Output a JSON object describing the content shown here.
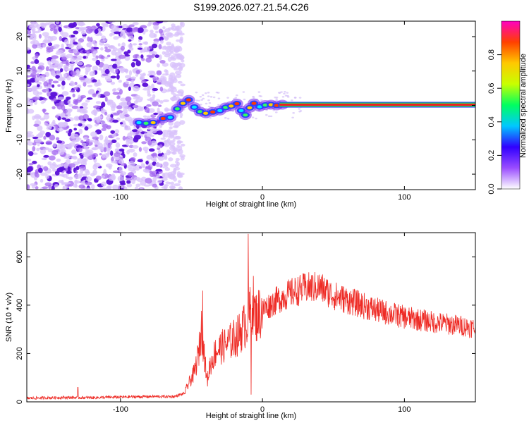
{
  "figure_title": "S199.2026.027.21.54.C26",
  "chart_data": [
    {
      "type": "heatmap",
      "title": "S199.2026.027.21.54.C26",
      "xlabel": "Height of straight line (km)",
      "ylabel": "Frequency (Hz)",
      "xlim": [
        -166,
        150
      ],
      "ylim": [
        -24.5,
        24.5
      ],
      "x_ticks": [
        -100,
        0,
        100
      ],
      "y_ticks": [
        -20,
        -10,
        0,
        10,
        20
      ],
      "x_tick_labels": [
        "-100",
        "0",
        "100"
      ],
      "y_tick_labels": [
        "-20",
        "-10",
        "0",
        "10",
        "20"
      ],
      "noise_region_x": [
        -166,
        -62
      ],
      "ridge_points": [
        [
          -87,
          -5.0
        ],
        [
          -82,
          -5.2
        ],
        [
          -77,
          -5.0
        ],
        [
          -70,
          -3.8
        ],
        [
          -65,
          -3.5
        ],
        [
          -60,
          -1.0
        ],
        [
          -56,
          0.6
        ],
        [
          -52,
          1.6
        ],
        [
          -48,
          -0.5
        ],
        [
          -44,
          -1.8
        ],
        [
          -40,
          -2.3
        ],
        [
          -35,
          -1.9
        ],
        [
          -30,
          -1.5
        ],
        [
          -26,
          -0.6
        ],
        [
          -22,
          -0.2
        ],
        [
          -18,
          0.5
        ],
        [
          -15,
          -1.5
        ],
        [
          -12,
          -2.8
        ],
        [
          -9,
          -0.7
        ],
        [
          -6,
          0.6
        ],
        [
          -2,
          -0.4
        ],
        [
          2,
          0.1
        ],
        [
          6,
          0.2
        ],
        [
          10,
          0.0
        ],
        [
          14,
          0.2
        ]
      ],
      "carrier": {
        "x_start": 12,
        "x_end": 150,
        "frequency": 0.2,
        "amplitude": 0.95
      },
      "colorbar": {
        "label": "Normalized spectral amplitude",
        "range": [
          0,
          1
        ],
        "ticks": [
          0.0,
          0.2,
          0.4,
          0.6,
          0.8
        ],
        "tick_labels": [
          "0.0",
          "0.2",
          "0.4",
          "0.6",
          "0.8"
        ],
        "colors": [
          "#ffffff",
          "#9a4dff",
          "#3000ff",
          "#00c8ff",
          "#00ff60",
          "#c8ff00",
          "#ffc800",
          "#ff4000",
          "#ff00c0"
        ]
      }
    },
    {
      "type": "line",
      "xlabel": "Height of straight line (km)",
      "ylabel": "SNR (10 * v/v)",
      "xlim": [
        -166,
        150
      ],
      "ylim": [
        0,
        700
      ],
      "x_ticks": [
        -100,
        0,
        100
      ],
      "y_ticks": [
        0,
        200,
        400,
        600
      ],
      "x_tick_labels": [
        "-100",
        "0",
        "100"
      ],
      "y_tick_labels": [
        "0",
        "200",
        "400",
        "600"
      ],
      "series": [
        {
          "name": "SNR",
          "color": "#ee2a24",
          "x": [
            -166,
            -140,
            -120,
            -100,
            -80,
            -62,
            -55,
            -52,
            -48,
            -45,
            -43,
            -41,
            -39,
            -37,
            -33,
            -25,
            -18,
            -12,
            -9,
            -7,
            -5,
            0,
            10,
            20,
            30,
            40,
            50,
            60,
            80,
            100,
            120,
            140,
            150
          ],
          "y": [
            15,
            18,
            17,
            20,
            22,
            22,
            35,
            75,
            120,
            200,
            300,
            200,
            80,
            150,
            210,
            240,
            270,
            320,
            360,
            420,
            350,
            380,
            420,
            450,
            470,
            475,
            440,
            420,
            380,
            350,
            330,
            315,
            305
          ],
          "spikes": [
            [
              -42,
              460
            ],
            [
              -36,
              150
            ],
            [
              -10,
              695
            ],
            [
              -8,
              30
            ],
            [
              -130,
              60
            ]
          ]
        }
      ]
    }
  ]
}
